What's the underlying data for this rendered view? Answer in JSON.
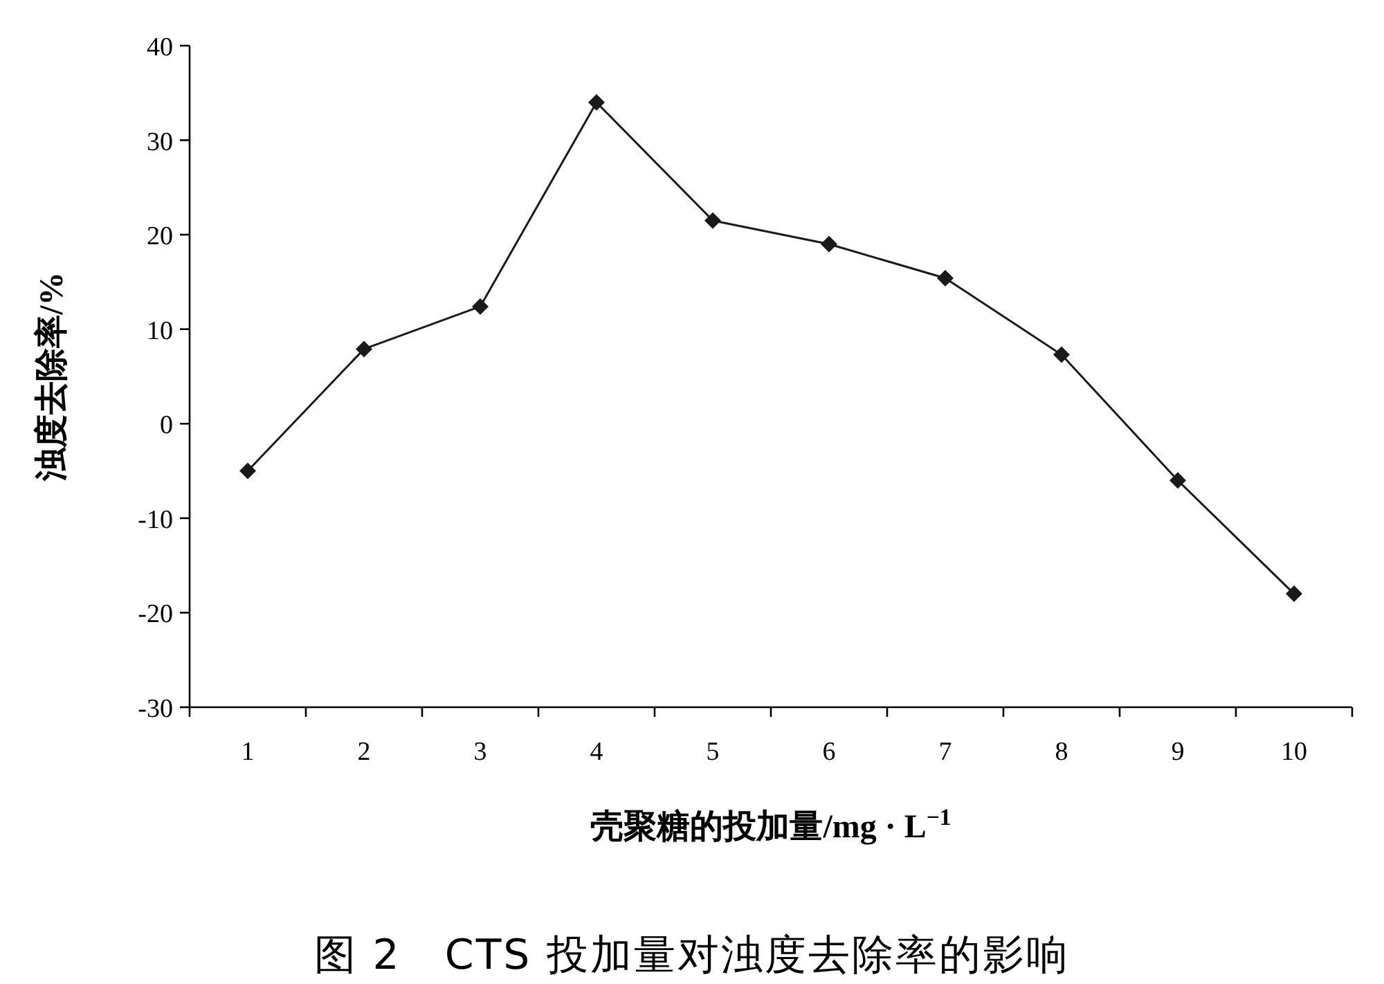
{
  "chart_data": {
    "type": "line",
    "xlabel": "壳聚糖的投加量/mg · L$^{−1}$",
    "ylabel": "浊度去除率/%",
    "categories": [
      "1",
      "2",
      "3",
      "4",
      "5",
      "6",
      "7",
      "8",
      "9",
      "10"
    ],
    "series": [
      {
        "color": "#1a1a1a",
        "values": [
          -5,
          7.9,
          12.4,
          34,
          21.5,
          19,
          15.4,
          7.3,
          -6,
          -18
        ]
      }
    ],
    "ylim": [
      -30,
      40
    ],
    "yticks": [
      -30,
      -20,
      -10,
      0,
      10,
      20,
      30,
      40
    ],
    "marker": "diamond",
    "line_style": "solid",
    "annotations": [
      "图 2　CTS 投加量对浊度去除率的影响"
    ]
  }
}
